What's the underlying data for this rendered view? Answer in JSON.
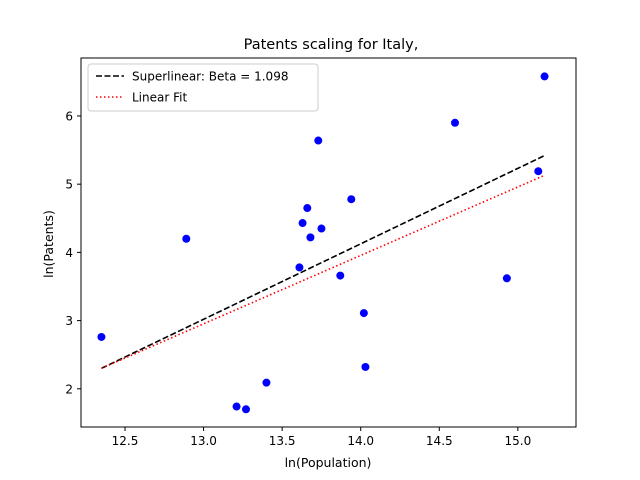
{
  "chart_data": {
    "type": "scatter",
    "title": "Patents scaling for Italy,",
    "xlabel": "ln(Population)",
    "ylabel": "ln(Patents)",
    "xlim": [
      12.22,
      15.37
    ],
    "ylim": [
      1.44,
      6.85
    ],
    "xticks": [
      12.5,
      13.0,
      13.5,
      14.0,
      14.5,
      15.0
    ],
    "xtick_labels": [
      "12.5",
      "13.0",
      "13.5",
      "14.0",
      "14.5",
      "15.0"
    ],
    "yticks": [
      2,
      3,
      4,
      5,
      6
    ],
    "ytick_labels": [
      "2",
      "3",
      "4",
      "5",
      "6"
    ],
    "grid": false,
    "legend_position": "top-left",
    "points": {
      "name": "data",
      "color": "#0000ff",
      "x": [
        12.35,
        12.89,
        13.21,
        13.27,
        13.4,
        13.61,
        13.63,
        13.66,
        13.68,
        13.73,
        13.75,
        13.87,
        13.94,
        14.02,
        14.03,
        14.6,
        14.93,
        15.13,
        15.17
      ],
      "y": [
        2.76,
        4.2,
        1.74,
        1.7,
        2.09,
        3.78,
        4.43,
        4.65,
        4.22,
        5.64,
        4.35,
        3.66,
        4.78,
        3.11,
        2.32,
        5.9,
        3.62,
        5.19,
        6.58
      ]
    },
    "series": [
      {
        "name": "Superlinear: Beta = 1.098",
        "style": "dashed",
        "color": "#000000",
        "x": [
          12.35,
          15.17
        ],
        "y": [
          2.3,
          5.42
        ]
      },
      {
        "name": "Linear Fit",
        "style": "dotted",
        "color": "#ff0000",
        "x": [
          12.35,
          15.17
        ],
        "y": [
          2.3,
          5.13
        ]
      }
    ]
  }
}
